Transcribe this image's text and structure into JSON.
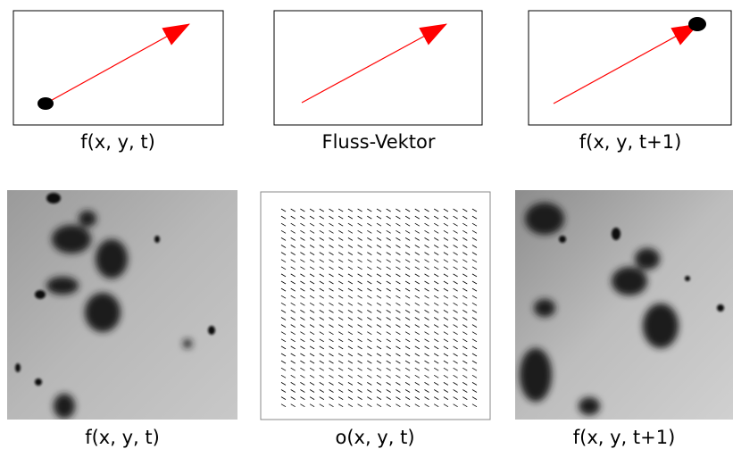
{
  "panels": {
    "top": [
      "f(x, y, t)",
      "Fluss-Vektor",
      "f(x, y, t+1)"
    ],
    "bottom": [
      "f(x, y, t)",
      "o(x, y, t)",
      "f(x, y, t+1)"
    ]
  }
}
